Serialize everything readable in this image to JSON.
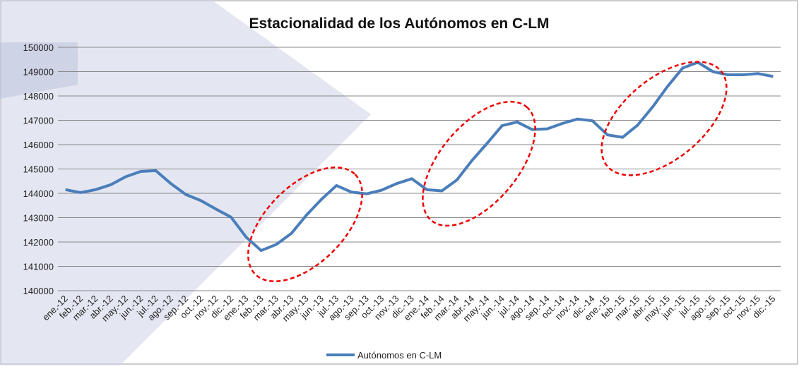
{
  "chart_data": {
    "type": "line",
    "title": "Estacionalidad de los Autónomos en C-LM",
    "categories": [
      "ene.-12",
      "feb.-12",
      "mar.-12",
      "abr.-12",
      "may.-12",
      "jun.-12",
      "jul.-12",
      "ago.-12",
      "sep.-12",
      "oct.-12",
      "nov.-12",
      "dic.-12",
      "ene.-13",
      "feb.-13",
      "mar.-13",
      "abr.-13",
      "may.-13",
      "jun.-13",
      "jul.-13",
      "ago.-13",
      "sep.-13",
      "oct.-13",
      "nov.-13",
      "dic.-13",
      "ene.-14",
      "feb.-14",
      "mar.-14",
      "abr.-14",
      "may.-14",
      "jun.-14",
      "jul.-14",
      "ago.-14",
      "sep.-14",
      "oct.-14",
      "nov.-14",
      "dic.-14",
      "ene.-15",
      "feb.-15",
      "mar.-15",
      "abr.-15",
      "may.-15",
      "jun.-15",
      "jul.-15",
      "ago.-15",
      "sep.-15",
      "oct.-15",
      "nov.-15",
      "dic.-15"
    ],
    "series": [
      {
        "name": "Autónomos en C-LM",
        "color": "#4a7ebb",
        "values": [
          144150,
          144030,
          144150,
          144350,
          144680,
          144900,
          144930,
          144400,
          143950,
          143700,
          143350,
          143020,
          142200,
          141650,
          141900,
          142350,
          143100,
          143750,
          144320,
          144050,
          143980,
          144130,
          144400,
          144600,
          144150,
          144100,
          144550,
          145350,
          146050,
          146780,
          146930,
          146620,
          146650,
          146870,
          147050,
          146980,
          146400,
          146300,
          146800,
          147550,
          148400,
          149150,
          149380,
          149000,
          148870,
          148870,
          148920,
          148800
        ]
      }
    ],
    "ylim": [
      140000,
      150000
    ],
    "yticks": [
      140000,
      141000,
      142000,
      143000,
      144000,
      145000,
      146000,
      147000,
      148000,
      149000,
      150000
    ],
    "grid": true,
    "legend": "bottom"
  }
}
